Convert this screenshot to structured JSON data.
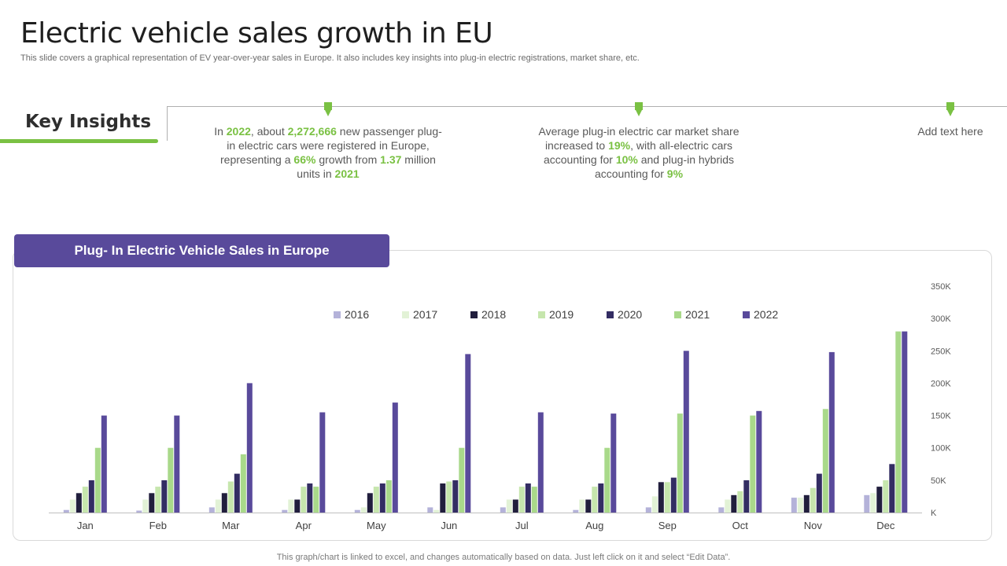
{
  "page": {
    "title": "Electric vehicle sales growth in EU",
    "subtitle": "This slide covers a graphical representation of  EV year-over-year  sales in Europe. It also includes key insights into plug-in electric registrations, market share, etc.",
    "footer": "This graph/chart is linked to excel,  and changes automatically based on data. Just left click on it and select “Edit Data”."
  },
  "insights": {
    "heading": "Key Insights",
    "items": [
      {
        "segments": [
          {
            "t": "In ",
            "hl": false
          },
          {
            "t": "2022",
            "hl": true
          },
          {
            "t": ", about ",
            "hl": false
          },
          {
            "t": "2,272,666",
            "hl": true
          },
          {
            "t": " new passenger plug-in electric cars were registered in Europe, representing a ",
            "hl": false
          },
          {
            "t": "66%",
            "hl": true
          },
          {
            "t": " growth from ",
            "hl": false
          },
          {
            "t": "1.37",
            "hl": true
          },
          {
            "t": " million units in ",
            "hl": false
          },
          {
            "t": "2021",
            "hl": true
          }
        ]
      },
      {
        "segments": [
          {
            "t": "Average plug-in electric car market share increased to ",
            "hl": false
          },
          {
            "t": "19%",
            "hl": true
          },
          {
            "t": ", with all-electric cars accounting for ",
            "hl": false
          },
          {
            "t": "10%",
            "hl": true
          },
          {
            "t": " and plug-in hybrids accounting for ",
            "hl": false
          },
          {
            "t": "9%",
            "hl": true
          }
        ]
      },
      {
        "segments": [
          {
            "t": "Add text here",
            "hl": false
          }
        ]
      }
    ]
  },
  "colors": {
    "accent_green": "#7ac143",
    "header_purple": "#594a9b"
  },
  "chart_data": {
    "type": "bar",
    "title": "Plug- In Electric Vehicle Sales in Europe",
    "categories": [
      "Jan",
      "Feb",
      "Mar",
      "Apr",
      "May",
      "Jun",
      "Jul",
      "Aug",
      "Sep",
      "Oct",
      "Nov",
      "Dec"
    ],
    "y_ticks": [
      {
        "value": 0,
        "label": "K"
      },
      {
        "value": 50000,
        "label": "50K"
      },
      {
        "value": 100000,
        "label": "100K"
      },
      {
        "value": 150000,
        "label": "150K"
      },
      {
        "value": 200000,
        "label": "200K"
      },
      {
        "value": 250000,
        "label": "250K"
      },
      {
        "value": 300000,
        "label": "300K"
      },
      {
        "value": 350000,
        "label": "350K"
      }
    ],
    "ylim": [
      0,
      350000
    ],
    "legend_position": "top",
    "series": [
      {
        "name": "2016",
        "color": "#b4b2d9",
        "values": [
          4000,
          3000,
          8000,
          4000,
          4000,
          8000,
          8000,
          4000,
          8000,
          8000,
          23000,
          27000
        ]
      },
      {
        "name": "2017",
        "color": "#e2f2d6",
        "values": [
          20000,
          20000,
          20000,
          20000,
          8000,
          4000,
          20000,
          20000,
          25000,
          20000,
          23000,
          30000
        ]
      },
      {
        "name": "2018",
        "color": "#211e3d",
        "values": [
          30000,
          30000,
          30000,
          20000,
          30000,
          45000,
          20000,
          20000,
          47000,
          27000,
          27000,
          40000
        ]
      },
      {
        "name": "2019",
        "color": "#c6e6ad",
        "values": [
          40000,
          40000,
          48000,
          40000,
          40000,
          48000,
          40000,
          40000,
          47000,
          33000,
          38000,
          50000
        ]
      },
      {
        "name": "2020",
        "color": "#332d63",
        "values": [
          50000,
          50000,
          60000,
          45000,
          45000,
          50000,
          45000,
          45000,
          54000,
          50000,
          60000,
          75000
        ]
      },
      {
        "name": "2021",
        "color": "#a9d98a",
        "values": [
          100000,
          100000,
          90000,
          40000,
          50000,
          100000,
          40000,
          100000,
          153000,
          150000,
          160000,
          280000
        ]
      },
      {
        "name": "2022",
        "color": "#594a9b",
        "values": [
          150000,
          150000,
          200000,
          155000,
          170000,
          245000,
          155000,
          153000,
          250000,
          157000,
          248000,
          280000
        ]
      }
    ]
  }
}
